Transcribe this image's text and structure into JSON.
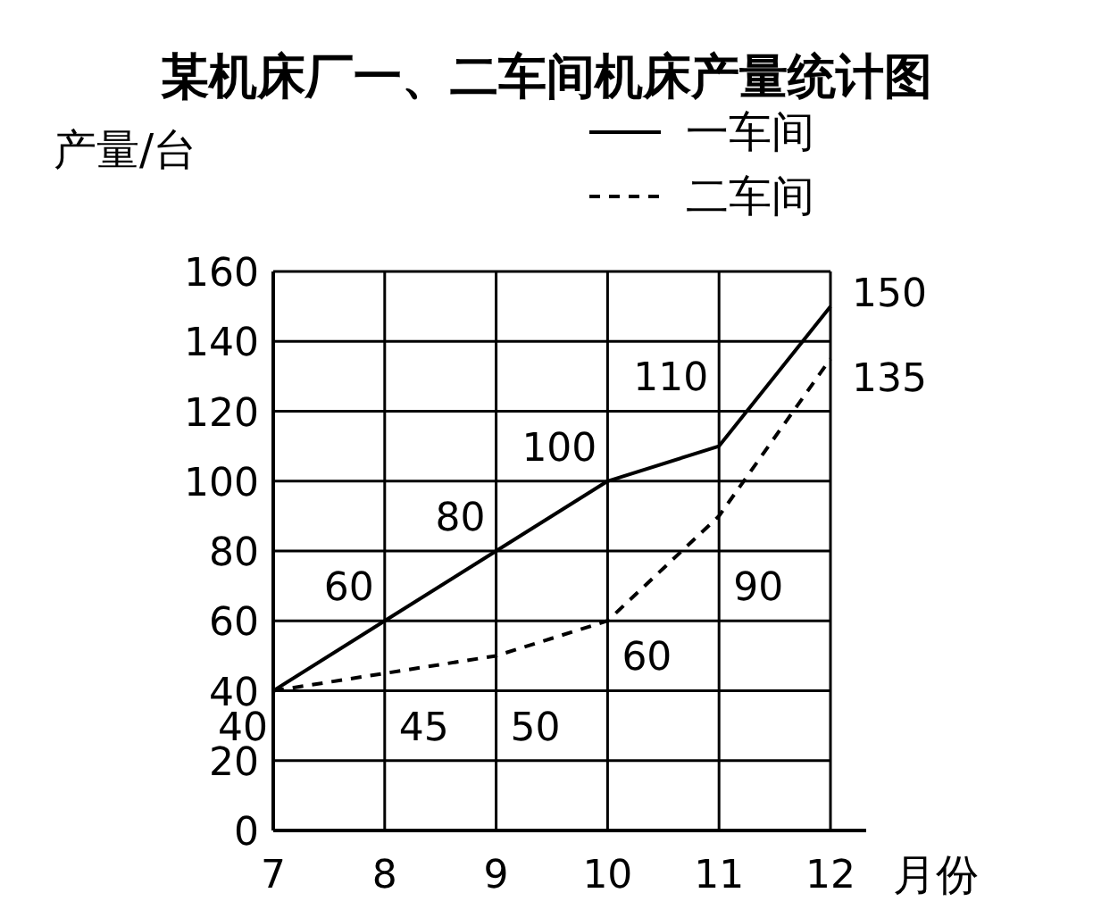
{
  "chart_data": {
    "type": "line",
    "title": "某机床厂一、二车间机床产量统计图",
    "xlabel": "月份",
    "ylabel": "产量/台",
    "x": [
      7,
      8,
      9,
      10,
      11,
      12
    ],
    "xlim": [
      7,
      12
    ],
    "xticks": [
      7,
      8,
      9,
      10,
      11,
      12
    ],
    "ylim": [
      0,
      160
    ],
    "yticks": [
      0,
      20,
      40,
      60,
      80,
      100,
      120,
      140,
      160
    ],
    "grid": true,
    "legend": "top right",
    "series": [
      {
        "name": "一车间",
        "color": "#000000",
        "line_style": "solid",
        "values": [
          40,
          60,
          80,
          100,
          110,
          150
        ],
        "value_labels": [
          "40",
          "60",
          "80",
          "100",
          "110",
          "150"
        ]
      },
      {
        "name": "二车间",
        "color": "#000000",
        "line_style": "dashed",
        "values": [
          40,
          45,
          50,
          60,
          90,
          135
        ],
        "value_labels": [
          null,
          "45",
          "50",
          "60",
          "90",
          "135"
        ]
      }
    ]
  }
}
